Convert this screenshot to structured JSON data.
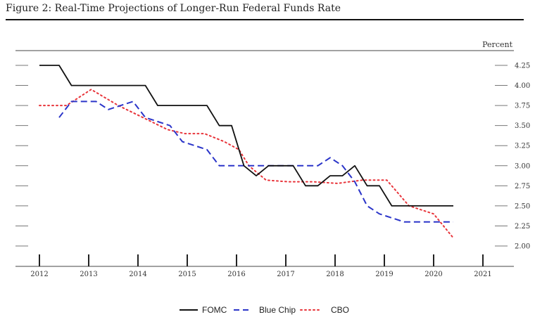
{
  "figure": {
    "title": "Figure 2: Real-Time Projections of Longer-Run Federal Funds Rate"
  },
  "chart_data": {
    "type": "line",
    "ylabel": "Percent",
    "xlabel": "",
    "xlim": [
      2011.9,
      2021.1
    ],
    "ylim": [
      2.0,
      4.25
    ],
    "x_ticks": [
      "2012",
      "2013",
      "2014",
      "2015",
      "2016",
      "2017",
      "2018",
      "2019",
      "2020",
      "2021"
    ],
    "y_ticks": [
      "2.00",
      "2.25",
      "2.50",
      "2.75",
      "3.00",
      "3.25",
      "3.50",
      "3.75",
      "4.00",
      "4.25"
    ],
    "grid": false,
    "legend_position": "bottom",
    "series": [
      {
        "name": "FOMC",
        "color": "#111111",
        "style": "solid",
        "x": [
          2012.0,
          2012.4,
          2012.65,
          2012.9,
          2013.15,
          2013.4,
          2013.65,
          2013.9,
          2014.15,
          2014.4,
          2014.65,
          2014.9,
          2015.15,
          2015.4,
          2015.65,
          2015.9,
          2016.15,
          2016.4,
          2016.65,
          2016.9,
          2017.15,
          2017.4,
          2017.65,
          2017.9,
          2018.15,
          2018.4,
          2018.65,
          2018.9,
          2019.15,
          2019.4,
          2019.65,
          2019.9,
          2020.15,
          2020.4
        ],
        "values": [
          4.25,
          4.25,
          4.0,
          4.0,
          4.0,
          4.0,
          4.0,
          4.0,
          4.0,
          3.75,
          3.75,
          3.75,
          3.75,
          3.75,
          3.5,
          3.5,
          3.0,
          2.875,
          3.0,
          3.0,
          3.0,
          2.75,
          2.75,
          2.875,
          2.875,
          3.0,
          2.75,
          2.75,
          2.5,
          2.5,
          2.5,
          2.5,
          2.5,
          2.5
        ]
      },
      {
        "name": "Blue Chip",
        "color": "#2b35c9",
        "style": "dashed",
        "x": [
          2012.4,
          2012.65,
          2012.9,
          2013.15,
          2013.4,
          2013.65,
          2013.9,
          2014.15,
          2014.4,
          2014.65,
          2014.9,
          2015.15,
          2015.4,
          2015.65,
          2015.9,
          2016.15,
          2016.4,
          2016.65,
          2016.9,
          2017.15,
          2017.4,
          2017.65,
          2017.9,
          2018.15,
          2018.4,
          2018.65,
          2018.9,
          2019.15,
          2019.4,
          2019.65,
          2019.9,
          2020.15,
          2020.4
        ],
        "values": [
          3.6,
          3.8,
          3.8,
          3.8,
          3.7,
          3.75,
          3.8,
          3.6,
          3.55,
          3.5,
          3.3,
          3.25,
          3.2,
          3.0,
          3.0,
          3.0,
          3.0,
          3.0,
          3.0,
          3.0,
          3.0,
          3.0,
          3.1,
          3.0,
          2.8,
          2.5,
          2.4,
          2.35,
          2.3,
          2.3,
          2.3,
          2.3,
          2.3
        ]
      },
      {
        "name": "CBO",
        "color": "#e8343a",
        "style": "dotted",
        "x": [
          2012.0,
          2012.55,
          2013.05,
          2013.6,
          2014.1,
          2014.6,
          2014.95,
          2015.35,
          2015.75,
          2016.05,
          2016.25,
          2016.6,
          2017.05,
          2017.55,
          2018.05,
          2018.55,
          2019.05,
          2019.5,
          2020.0,
          2020.4
        ],
        "values": [
          3.75,
          3.75,
          3.95,
          3.75,
          3.6,
          3.45,
          3.4,
          3.4,
          3.3,
          3.2,
          3.0,
          2.82,
          2.8,
          2.8,
          2.78,
          2.82,
          2.82,
          2.5,
          2.4,
          2.1
        ]
      }
    ]
  }
}
